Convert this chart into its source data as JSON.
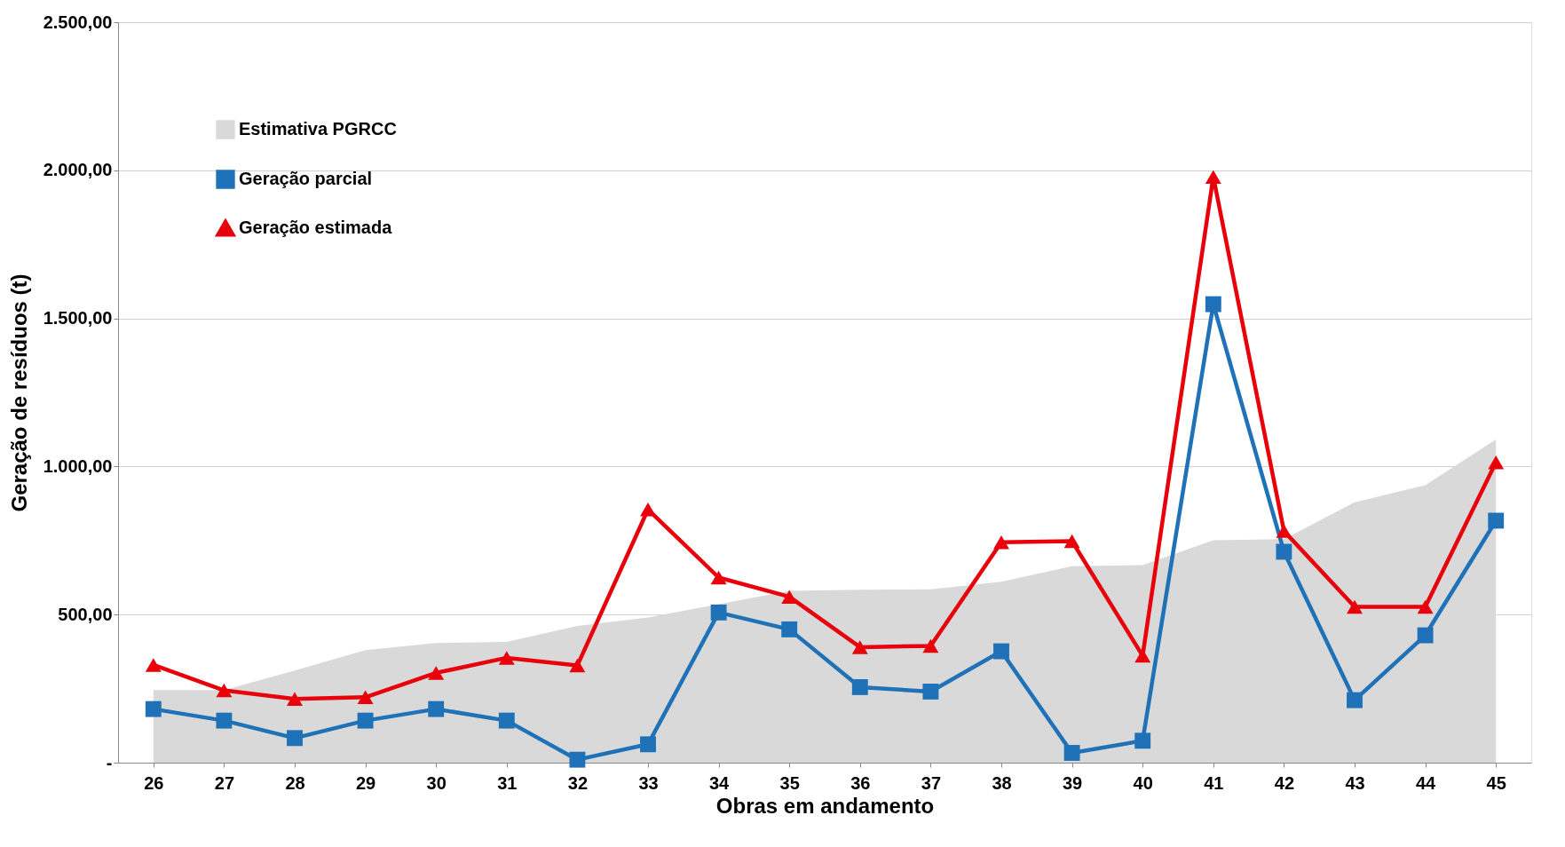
{
  "chart_data": {
    "type": "line",
    "xlabel": "Obras em andamento",
    "ylabel": "Geração de resíduos (t)",
    "categories": [
      "26",
      "27",
      "28",
      "29",
      "30",
      "31",
      "32",
      "33",
      "34",
      "35",
      "36",
      "37",
      "38",
      "39",
      "40",
      "41",
      "42",
      "43",
      "44",
      "45"
    ],
    "series": [
      {
        "name": "Estimativa PGRCC",
        "type": "area",
        "color": "#d9d9d9",
        "values": [
          245,
          245,
          311,
          380,
          404,
          408,
          462,
          490,
          null,
          580,
          584,
          585,
          611,
          663,
          667,
          751,
          755,
          879,
          937,
          1091
        ]
      },
      {
        "name": "Geração parcial",
        "color": "#1f72b8",
        "marker": "square",
        "values": [
          181,
          142,
          83,
          142,
          181,
          142,
          10,
          62,
          507,
          450,
          255,
          240,
          376,
          33,
          74,
          1548,
          712,
          211,
          430,
          817
        ]
      },
      {
        "name": "Geração estimada",
        "color": "#e8000b",
        "marker": "triangle",
        "values": [
          330,
          244,
          215,
          221,
          303,
          354,
          328,
          855,
          625,
          560,
          390,
          394,
          744,
          748,
          361,
          1978,
          782,
          526,
          526,
          1014
        ]
      }
    ],
    "ylim": [
      0,
      2500
    ],
    "yticks": [
      {
        "value": 0,
        "label": "-"
      },
      {
        "value": 500,
        "label": "500,00"
      },
      {
        "value": 1000,
        "label": "1.000,00"
      },
      {
        "value": 1500,
        "label": "1.500,00"
      },
      {
        "value": 2000,
        "label": "2.000,00"
      },
      {
        "value": 2500,
        "label": "2.500,00"
      }
    ],
    "grid": "y",
    "legend": "top left",
    "line_style": "solid"
  }
}
